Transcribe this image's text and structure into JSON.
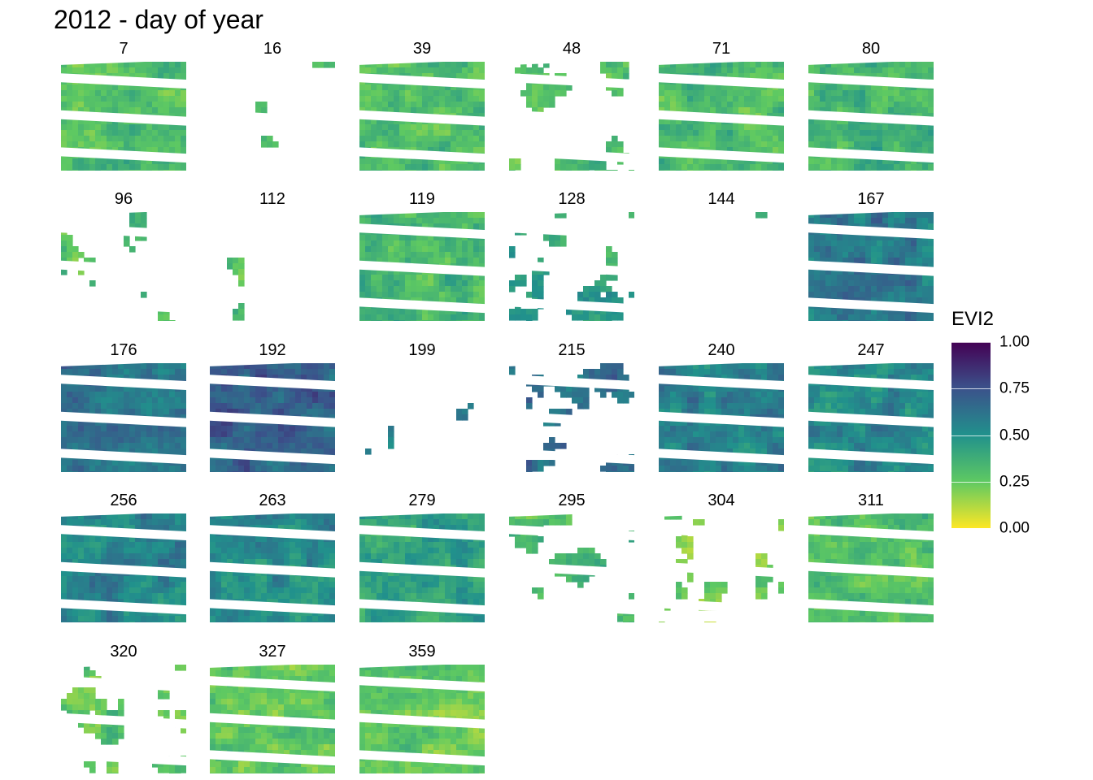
{
  "chart_data": {
    "type": "heatmap",
    "title": "2012 - day of year",
    "panels": [
      {
        "label": "7",
        "coverage": 0.9,
        "evi2_mean": 0.3
      },
      {
        "label": "16",
        "coverage": 0.12,
        "evi2_mean": 0.3
      },
      {
        "label": "39",
        "coverage": 0.92,
        "evi2_mean": 0.3
      },
      {
        "label": "48",
        "coverage": 0.42,
        "evi2_mean": 0.28
      },
      {
        "label": "71",
        "coverage": 0.93,
        "evi2_mean": 0.32
      },
      {
        "label": "80",
        "coverage": 0.9,
        "evi2_mean": 0.35
      },
      {
        "label": "96",
        "coverage": 0.35,
        "evi2_mean": 0.3
      },
      {
        "label": "112",
        "coverage": 0.01,
        "evi2_mean": 0.3
      },
      {
        "label": "119",
        "coverage": 0.9,
        "evi2_mean": 0.33
      },
      {
        "label": "128",
        "coverage": 0.35,
        "evi2_mean": 0.42
      },
      {
        "label": "144",
        "coverage": 0.02,
        "evi2_mean": 0.4
      },
      {
        "label": "167",
        "coverage": 0.92,
        "evi2_mean": 0.6
      },
      {
        "label": "176",
        "coverage": 0.92,
        "evi2_mean": 0.62
      },
      {
        "label": "192",
        "coverage": 0.85,
        "evi2_mean": 0.68
      },
      {
        "label": "199",
        "coverage": 0.01,
        "evi2_mean": 0.6
      },
      {
        "label": "215",
        "coverage": 0.62,
        "evi2_mean": 0.65
      },
      {
        "label": "240",
        "coverage": 0.86,
        "evi2_mean": 0.56
      },
      {
        "label": "247",
        "coverage": 0.92,
        "evi2_mean": 0.52
      },
      {
        "label": "256",
        "coverage": 0.92,
        "evi2_mean": 0.55
      },
      {
        "label": "263",
        "coverage": 0.92,
        "evi2_mean": 0.52
      },
      {
        "label": "279",
        "coverage": 0.92,
        "evi2_mean": 0.42
      },
      {
        "label": "295",
        "coverage": 0.6,
        "evi2_mean": 0.32
      },
      {
        "label": "304",
        "coverage": 0.28,
        "evi2_mean": 0.22
      },
      {
        "label": "311",
        "coverage": 0.92,
        "evi2_mean": 0.3
      },
      {
        "label": "320",
        "coverage": 0.35,
        "evi2_mean": 0.27
      },
      {
        "label": "327",
        "coverage": 0.92,
        "evi2_mean": 0.26
      },
      {
        "label": "359",
        "coverage": 0.92,
        "evi2_mean": 0.25
      }
    ],
    "legend": {
      "title": "EVI2",
      "min": 0,
      "max": 1,
      "ticks": [
        "0.00",
        "0.25",
        "0.50",
        "0.75",
        "1.00"
      ],
      "palette": [
        "#fde725",
        "#5ec962",
        "#21918c",
        "#3b528b",
        "#440154"
      ]
    }
  }
}
